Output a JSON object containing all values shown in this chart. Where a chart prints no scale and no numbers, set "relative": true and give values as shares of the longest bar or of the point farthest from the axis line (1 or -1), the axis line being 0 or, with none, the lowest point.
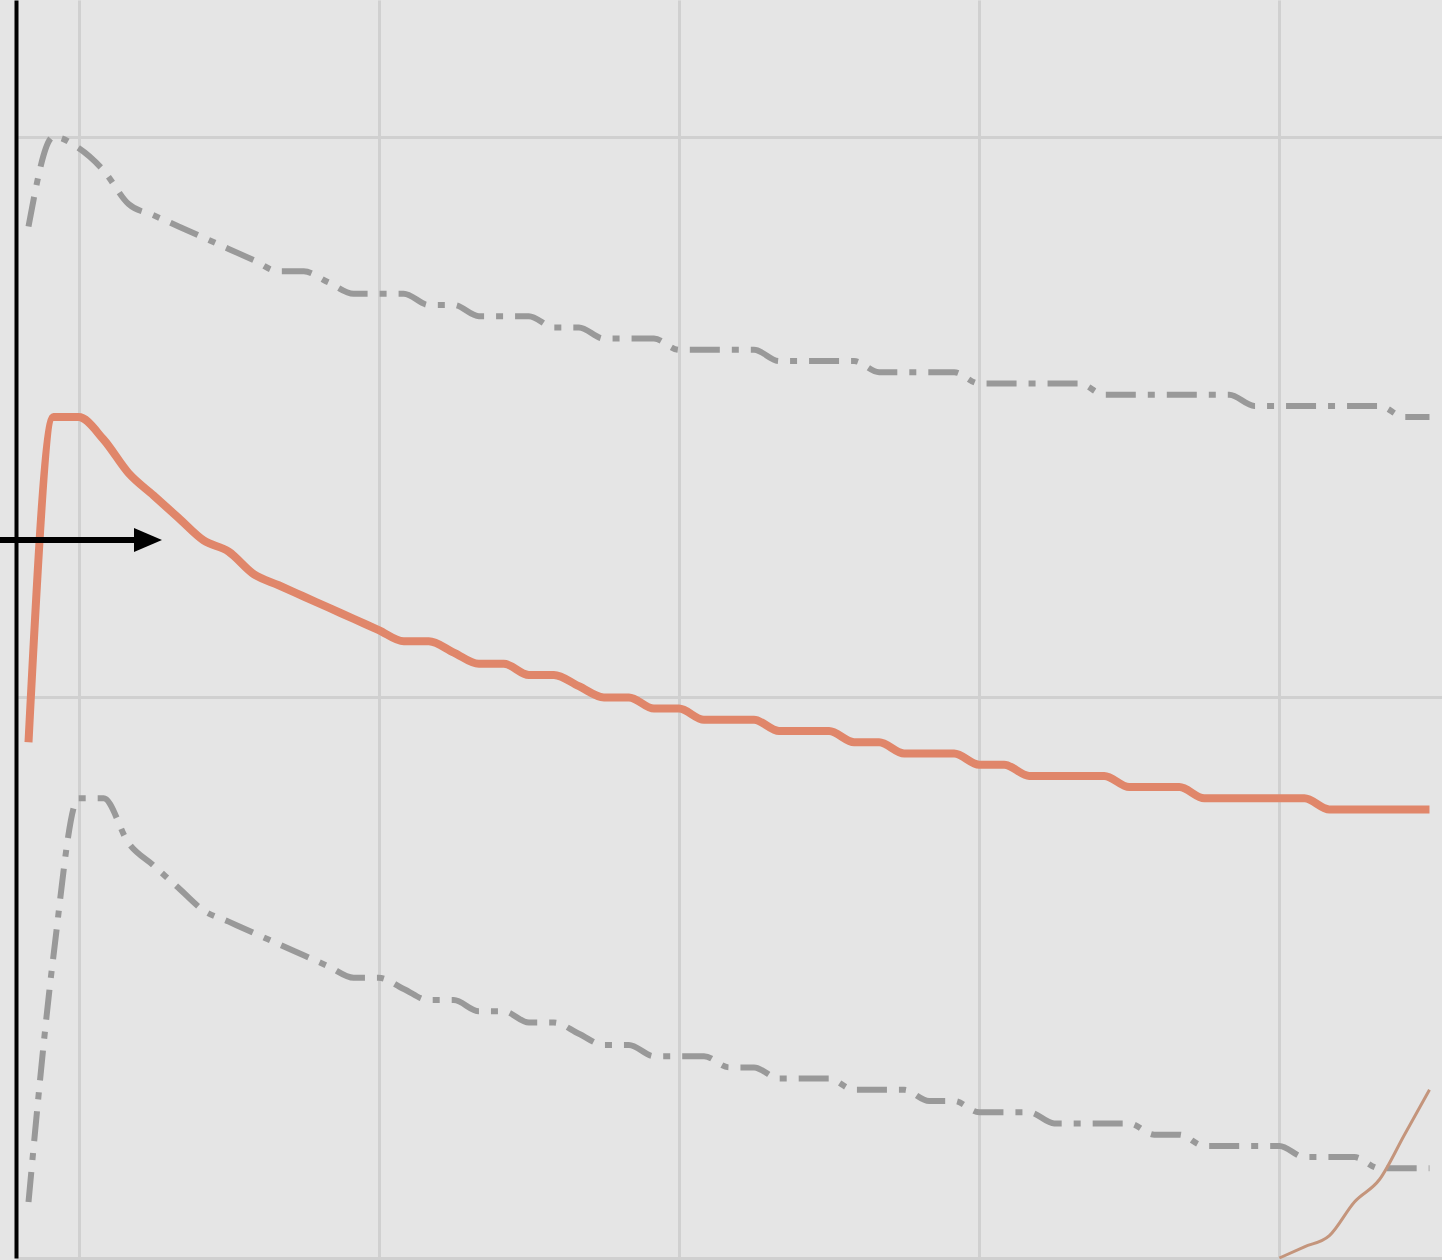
{
  "chart_data": {
    "type": "line",
    "relative": true,
    "grid": true,
    "categories": [
      null,
      null,
      null,
      null,
      null,
      null,
      null,
      null,
      null,
      null,
      null,
      null,
      null,
      null,
      null,
      null,
      null,
      null,
      null,
      null,
      null,
      null,
      null,
      null,
      null,
      null,
      null,
      null,
      null,
      null,
      null,
      null,
      null,
      null,
      null,
      null,
      null,
      null,
      null,
      null,
      null,
      null,
      null,
      null,
      null,
      null,
      null,
      null,
      null,
      null,
      null,
      null,
      null,
      null,
      null,
      null,
      null
    ],
    "series": [
      {
        "color": "#999999",
        "line_style": "dashed",
        "values": [
          0.92,
          1,
          0.99,
          0.97,
          0.94,
          0.93,
          0.92,
          0.91,
          0.9,
          0.89,
          0.88,
          0.88,
          0.87,
          0.86,
          0.86,
          0.86,
          0.85,
          0.85,
          0.84,
          0.84,
          0.84,
          0.83,
          0.83,
          0.82,
          0.82,
          0.82,
          0.81,
          0.81,
          0.81,
          0.81,
          0.8,
          0.8,
          0.8,
          0.8,
          0.79,
          0.79,
          0.79,
          0.79,
          0.78,
          0.78,
          0.78,
          0.78,
          0.78,
          0.77,
          0.77,
          0.77,
          0.77,
          0.77,
          0.77,
          0.76,
          0.76,
          0.76,
          0.76,
          0.76,
          0.76,
          0.75,
          0.75
        ]
      },
      {
        "color": "#e0866a",
        "line_style": "solid",
        "values": [
          0.46,
          0.75,
          0.75,
          0.73,
          0.7,
          0.68,
          0.66,
          0.64,
          0.63,
          0.61,
          0.6,
          0.59,
          0.58,
          0.57,
          0.56,
          0.55,
          0.55,
          0.54,
          0.53,
          0.53,
          0.52,
          0.52,
          0.51,
          0.5,
          0.5,
          0.49,
          0.49,
          0.48,
          0.48,
          0.48,
          0.47,
          0.47,
          0.47,
          0.46,
          0.46,
          0.45,
          0.45,
          0.45,
          0.44,
          0.44,
          0.43,
          0.43,
          0.43,
          0.43,
          0.42,
          0.42,
          0.42,
          0.41,
          0.41,
          0.41,
          0.41,
          0.41,
          0.4,
          0.4,
          0.4,
          0.4,
          0.4
        ]
      },
      {
        "color": "#999999",
        "line_style": "dashed",
        "values": [
          0.05,
          0.27,
          0.41,
          0.41,
          0.37,
          0.35,
          0.33,
          0.31,
          0.3,
          0.29,
          0.28,
          0.27,
          0.26,
          0.25,
          0.25,
          0.24,
          0.23,
          0.23,
          0.22,
          0.22,
          0.21,
          0.21,
          0.2,
          0.19,
          0.19,
          0.18,
          0.18,
          0.18,
          0.17,
          0.17,
          0.16,
          0.16,
          0.16,
          0.15,
          0.15,
          0.15,
          0.14,
          0.14,
          0.13,
          0.13,
          0.13,
          0.12,
          0.12,
          0.12,
          0.12,
          0.11,
          0.11,
          0.1,
          0.1,
          0.1,
          0.1,
          0.09,
          0.09,
          0.09,
          0.08,
          0.08,
          0.08
        ]
      },
      {
        "color": "#c4957c",
        "line_style": "solid",
        "values": [
          null,
          null,
          null,
          null,
          null,
          null,
          null,
          null,
          null,
          null,
          null,
          null,
          null,
          null,
          null,
          null,
          null,
          null,
          null,
          null,
          null,
          null,
          null,
          null,
          null,
          null,
          null,
          null,
          null,
          null,
          null,
          null,
          null,
          null,
          null,
          null,
          null,
          null,
          null,
          null,
          null,
          null,
          null,
          null,
          null,
          null,
          null,
          null,
          null,
          null,
          0,
          0.01,
          0.02,
          0.05,
          0.07,
          0.11,
          0.15
        ]
      }
    ]
  }
}
